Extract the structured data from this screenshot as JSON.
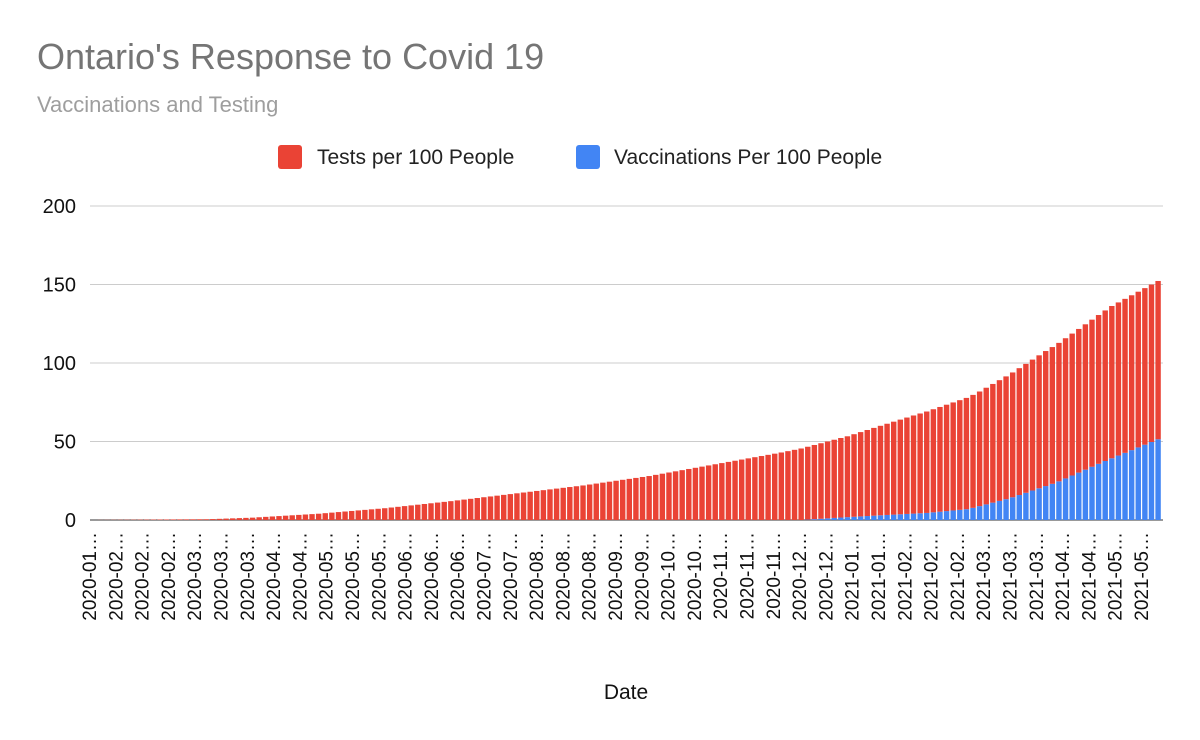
{
  "chart_data": {
    "type": "bar",
    "stacked": true,
    "title": "Ontario's Response to Covid 19",
    "subtitle": "Vaccinations and Testing",
    "xlabel": "Date",
    "ylabel": "",
    "ylim": [
      0,
      200
    ],
    "yticks": [
      0,
      50,
      100,
      150,
      200
    ],
    "grid": true,
    "legend_position": "top",
    "tick_labels": [
      "2020-01…",
      "2020-02…",
      "2020-02…",
      "2020-02…",
      "2020-03…",
      "2020-03…",
      "2020-03…",
      "2020-04…",
      "2020-04…",
      "2020-05…",
      "2020-05…",
      "2020-05…",
      "2020-06…",
      "2020-06…",
      "2020-06…",
      "2020-07…",
      "2020-07…",
      "2020-08…",
      "2020-08…",
      "2020-08…",
      "2020-09…",
      "2020-09…",
      "2020-10…",
      "2020-10…",
      "2020-11…",
      "2020-11…",
      "2020-11…",
      "2020-12…",
      "2020-12…",
      "2021-01…",
      "2021-01…",
      "2021-02…",
      "2021-02…",
      "2021-02…",
      "2021-03…",
      "2021-03…",
      "2021-03…",
      "2021-04…",
      "2021-04…",
      "2021-05…",
      "2021-05…"
    ],
    "tick_dates": [
      "2020-01-26",
      "2020-02-05",
      "2020-02-15",
      "2020-02-25",
      "2020-03-06",
      "2020-03-16",
      "2020-03-26",
      "2020-04-05",
      "2020-04-15",
      "2020-04-25",
      "2020-05-05",
      "2020-05-15",
      "2020-05-25",
      "2020-06-04",
      "2020-06-14",
      "2020-06-24",
      "2020-07-04",
      "2020-07-14",
      "2020-07-24",
      "2020-08-03",
      "2020-08-13",
      "2020-08-23",
      "2020-09-02",
      "2020-09-12",
      "2020-09-22",
      "2020-10-02",
      "2020-10-12",
      "2020-10-22",
      "2020-11-01",
      "2020-11-11",
      "2020-11-21",
      "2020-12-01",
      "2020-12-11",
      "2020-12-21",
      "2020-12-31",
      "2021-01-10",
      "2021-01-20",
      "2021-01-30",
      "2021-02-09",
      "2021-02-19",
      "2021-03-01"
    ],
    "x_start": "2020-01-26",
    "x_end": "2021-05-27",
    "series": [
      {
        "name": "Tests per 100 People",
        "color": "#ea4335",
        "dates": [
          "2020-01-26",
          "2020-03-21",
          "2020-04-10",
          "2020-05-10",
          "2020-06-09",
          "2020-07-09",
          "2020-08-08",
          "2020-09-07",
          "2020-10-07",
          "2020-11-06",
          "2020-12-06",
          "2021-01-05",
          "2021-02-04",
          "2021-03-06",
          "2021-04-05",
          "2021-05-05",
          "2021-05-27"
        ],
        "values": [
          0,
          0.5,
          1.5,
          4,
          7.5,
          12,
          17,
          22,
          28,
          35.5,
          43,
          51.5,
          62.5,
          73,
          86,
          97,
          101
        ]
      },
      {
        "name": "Vaccinations Per 100 People",
        "color": "#4285f4",
        "dates": [
          "2020-12-15",
          "2021-01-01",
          "2021-01-20",
          "2021-02-10",
          "2021-03-01",
          "2021-03-20",
          "2021-04-10",
          "2021-05-01",
          "2021-05-27"
        ],
        "values": [
          0,
          1.5,
          3,
          4.5,
          7,
          14,
          24,
          37,
          52
        ]
      }
    ]
  }
}
